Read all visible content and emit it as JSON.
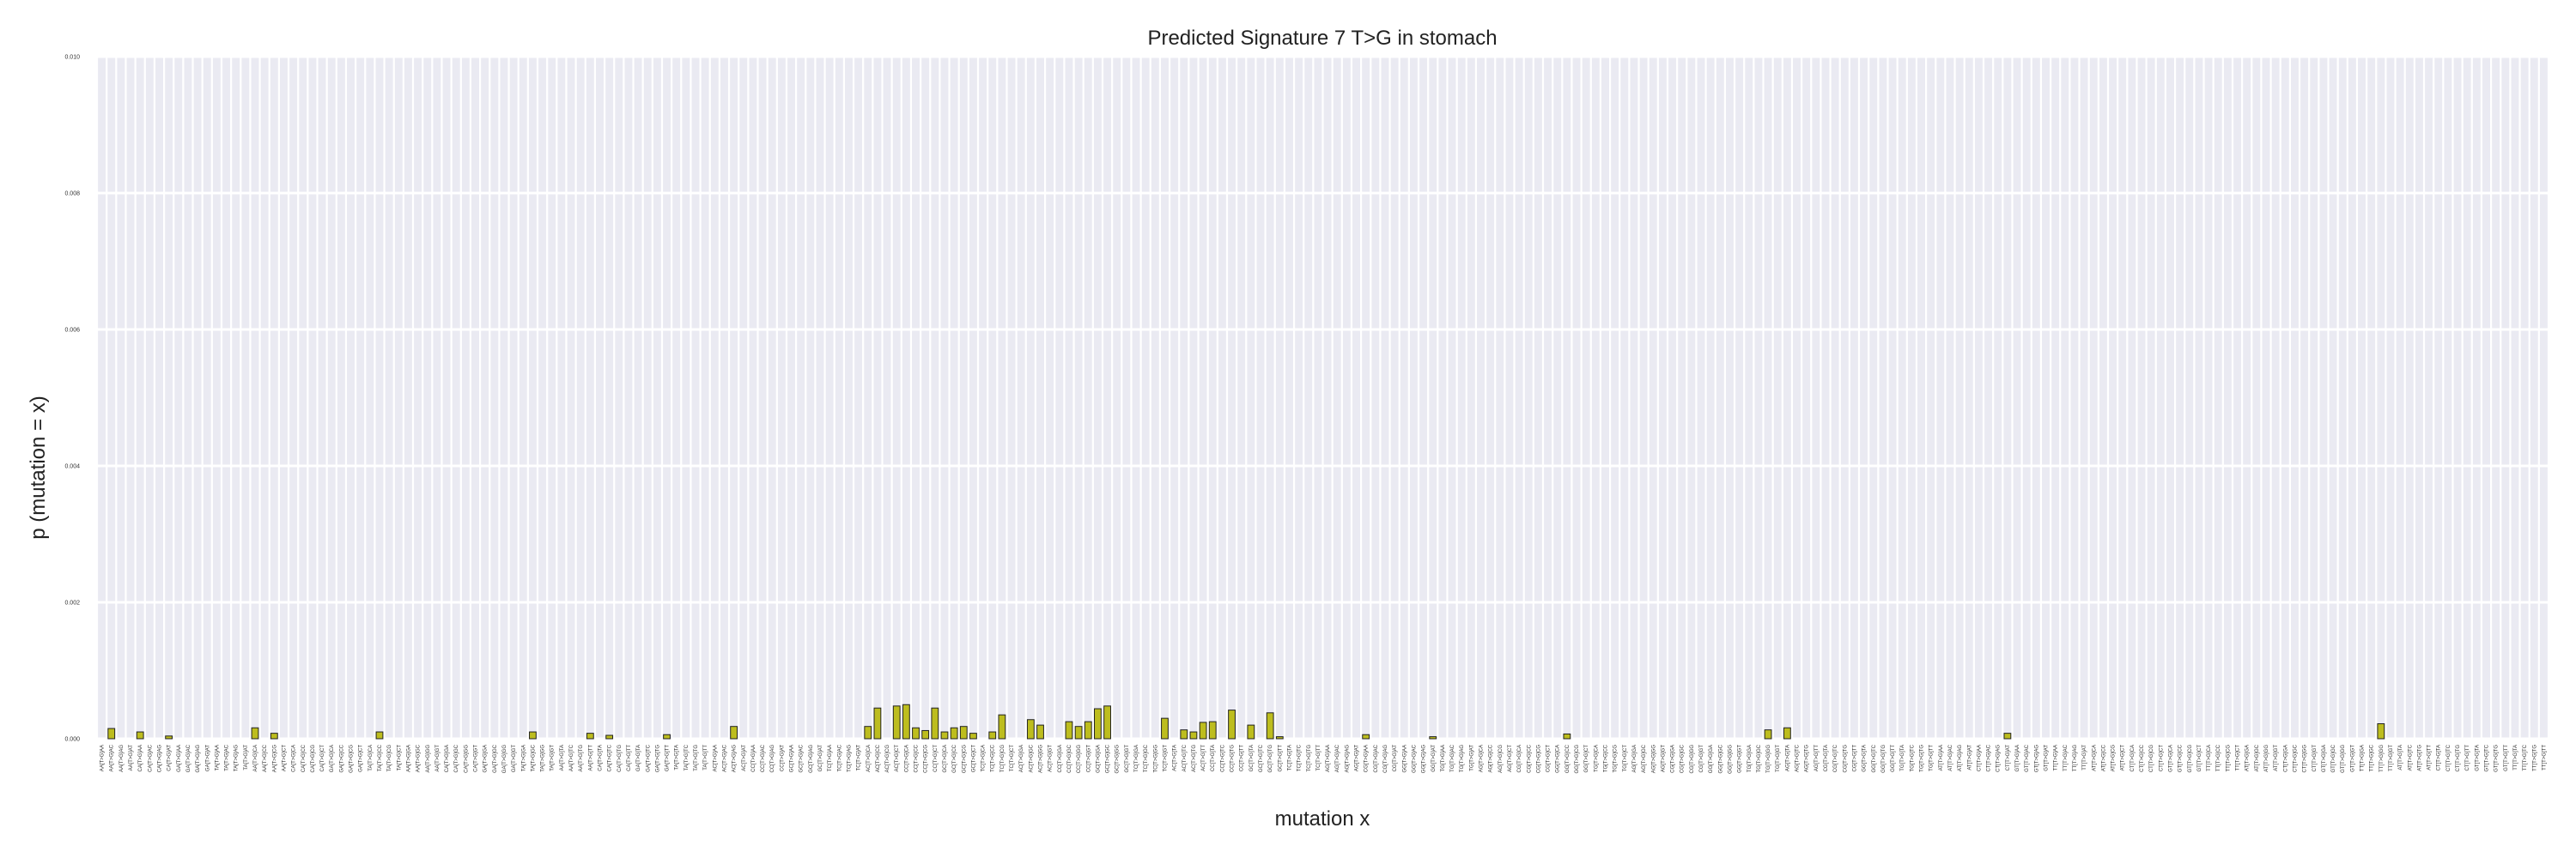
{
  "colors": {
    "plot_background": "#eaeaf2",
    "grid": "#ffffff",
    "bar_fill": "#bdbd1e",
    "bar_edge": "#222222",
    "text": "#222222"
  },
  "chart_data": {
    "type": "bar",
    "title": "Predicted Signature 7 T>G in stomach",
    "xlabel": "mutation x",
    "ylabel": "p (mutation = x)",
    "ylim": [
      0,
      0.01
    ],
    "yticks": [
      "0.000",
      "0.002",
      "0.004",
      "0.006",
      "0.008",
      "0.010"
    ],
    "grid": true,
    "legend": "none",
    "categories": [
      "AA[T>G]AA",
      "AA[T>G]AC",
      "AA[T>G]AG",
      "AA[T>G]AT",
      "CA[T>G]AA",
      "CA[T>G]AC",
      "CA[T>G]AG",
      "CA[T>G]AT",
      "GA[T>G]AA",
      "GA[T>G]AC",
      "GA[T>G]AG",
      "GA[T>G]AT",
      "TA[T>G]AA",
      "TA[T>G]AC",
      "TA[T>G]AG",
      "TA[T>G]AT",
      "AA[T>G]CA",
      "AA[T>G]CC",
      "AA[T>G]CG",
      "AA[T>G]CT",
      "CA[T>G]CA",
      "CA[T>G]CC",
      "CA[T>G]CG",
      "CA[T>G]CT",
      "GA[T>G]CA",
      "GA[T>G]CC",
      "GA[T>G]CG",
      "GA[T>G]CT",
      "TA[T>G]CA",
      "TA[T>G]CC",
      "TA[T>G]CG",
      "TA[T>G]CT",
      "AA[T>G]GA",
      "AA[T>G]GC",
      "AA[T>G]GG",
      "AA[T>G]GT",
      "CA[T>G]GA",
      "CA[T>G]GC",
      "CA[T>G]GG",
      "CA[T>G]GT",
      "GA[T>G]GA",
      "GA[T>G]GC",
      "GA[T>G]GG",
      "GA[T>G]GT",
      "TA[T>G]GA",
      "TA[T>G]GC",
      "TA[T>G]GG",
      "TA[T>G]GT",
      "AA[T>G]TA",
      "AA[T>G]TC",
      "AA[T>G]TG",
      "AA[T>G]TT",
      "CA[T>G]TA",
      "CA[T>G]TC",
      "CA[T>G]TG",
      "CA[T>G]TT",
      "GA[T>G]TA",
      "GA[T>G]TC",
      "GA[T>G]TG",
      "GA[T>G]TT",
      "TA[T>G]TA",
      "TA[T>G]TC",
      "TA[T>G]TG",
      "TA[T>G]TT",
      "AC[T>G]AA",
      "AC[T>G]AC",
      "AC[T>G]AG",
      "AC[T>G]AT",
      "CC[T>G]AA",
      "CC[T>G]AC",
      "CC[T>G]AG",
      "CC[T>G]AT",
      "GC[T>G]AA",
      "GC[T>G]AC",
      "GC[T>G]AG",
      "GC[T>G]AT",
      "TC[T>G]AA",
      "TC[T>G]AC",
      "TC[T>G]AG",
      "TC[T>G]AT",
      "AC[T>G]CA",
      "AC[T>G]CC",
      "AC[T>G]CG",
      "AC[T>G]CT",
      "CC[T>G]CA",
      "CC[T>G]CC",
      "CC[T>G]CG",
      "CC[T>G]CT",
      "GC[T>G]CA",
      "GC[T>G]CC",
      "GC[T>G]CG",
      "GC[T>G]CT",
      "TC[T>G]CA",
      "TC[T>G]CC",
      "TC[T>G]CG",
      "TC[T>G]CT",
      "AC[T>G]GA",
      "AC[T>G]GC",
      "AC[T>G]GG",
      "AC[T>G]GT",
      "CC[T>G]GA",
      "CC[T>G]GC",
      "CC[T>G]GG",
      "CC[T>G]GT",
      "GC[T>G]GA",
      "GC[T>G]GC",
      "GC[T>G]GG",
      "GC[T>G]GT",
      "TC[T>G]GA",
      "TC[T>G]GC",
      "TC[T>G]GG",
      "TC[T>G]GT",
      "AC[T>G]TA",
      "AC[T>G]TC",
      "AC[T>G]TG",
      "AC[T>G]TT",
      "CC[T>G]TA",
      "CC[T>G]TC",
      "CC[T>G]TG",
      "CC[T>G]TT",
      "GC[T>G]TA",
      "GC[T>G]TC",
      "GC[T>G]TG",
      "GC[T>G]TT",
      "TC[T>G]TA",
      "TC[T>G]TC",
      "TC[T>G]TG",
      "TC[T>G]TT",
      "AG[T>G]AA",
      "AG[T>G]AC",
      "AG[T>G]AG",
      "AG[T>G]AT",
      "CG[T>G]AA",
      "CG[T>G]AC",
      "CG[T>G]AG",
      "CG[T>G]AT",
      "GG[T>G]AA",
      "GG[T>G]AC",
      "GG[T>G]AG",
      "GG[T>G]AT",
      "TG[T>G]AA",
      "TG[T>G]AC",
      "TG[T>G]AG",
      "TG[T>G]AT",
      "AG[T>G]CA",
      "AG[T>G]CC",
      "AG[T>G]CG",
      "AG[T>G]CT",
      "CG[T>G]CA",
      "CG[T>G]CC",
      "CG[T>G]CG",
      "CG[T>G]CT",
      "GG[T>G]CA",
      "GG[T>G]CC",
      "GG[T>G]CG",
      "GG[T>G]CT",
      "TG[T>G]CA",
      "TG[T>G]CC",
      "TG[T>G]CG",
      "TG[T>G]CT",
      "AG[T>G]GA",
      "AG[T>G]GC",
      "AG[T>G]GG",
      "AG[T>G]GT",
      "CG[T>G]GA",
      "CG[T>G]GC",
      "CG[T>G]GG",
      "CG[T>G]GT",
      "GG[T>G]GA",
      "GG[T>G]GC",
      "GG[T>G]GG",
      "GG[T>G]GT",
      "TG[T>G]GA",
      "TG[T>G]GC",
      "TG[T>G]GG",
      "TG[T>G]GT",
      "AG[T>G]TA",
      "AG[T>G]TC",
      "AG[T>G]TG",
      "AG[T>G]TT",
      "CG[T>G]TA",
      "CG[T>G]TC",
      "CG[T>G]TG",
      "CG[T>G]TT",
      "GG[T>G]TA",
      "GG[T>G]TC",
      "GG[T>G]TG",
      "GG[T>G]TT",
      "TG[T>G]TA",
      "TG[T>G]TC",
      "TG[T>G]TG",
      "TG[T>G]TT",
      "AT[T>G]AA",
      "AT[T>G]AC",
      "AT[T>G]AG",
      "AT[T>G]AT",
      "CT[T>G]AA",
      "CT[T>G]AC",
      "CT[T>G]AG",
      "CT[T>G]AT",
      "GT[T>G]AA",
      "GT[T>G]AC",
      "GT[T>G]AG",
      "GT[T>G]AT",
      "TT[T>G]AA",
      "TT[T>G]AC",
      "TT[T>G]AG",
      "TT[T>G]AT",
      "AT[T>G]CA",
      "AT[T>G]CC",
      "AT[T>G]CG",
      "AT[T>G]CT",
      "CT[T>G]CA",
      "CT[T>G]CC",
      "CT[T>G]CG",
      "CT[T>G]CT",
      "GT[T>G]CA",
      "GT[T>G]CC",
      "GT[T>G]CG",
      "GT[T>G]CT",
      "TT[T>G]CA",
      "TT[T>G]CC",
      "TT[T>G]CG",
      "TT[T>G]CT",
      "AT[T>G]GA",
      "AT[T>G]GC",
      "AT[T>G]GG",
      "AT[T>G]GT",
      "CT[T>G]GA",
      "CT[T>G]GC",
      "CT[T>G]GG",
      "CT[T>G]GT",
      "GT[T>G]GA",
      "GT[T>G]GC",
      "GT[T>G]GG",
      "GT[T>G]GT",
      "TT[T>G]GA",
      "TT[T>G]GC",
      "TT[T>G]GG",
      "TT[T>G]GT",
      "AT[T>G]TA",
      "AT[T>G]TC",
      "AT[T>G]TG",
      "AT[T>G]TT",
      "CT[T>G]TA",
      "CT[T>G]TC",
      "CT[T>G]TG",
      "CT[T>G]TT",
      "GT[T>G]TA",
      "GT[T>G]TC",
      "GT[T>G]TG",
      "GT[T>G]TT",
      "TT[T>G]TA",
      "TT[T>G]TC",
      "TT[T>G]TG",
      "TT[T>G]TT"
    ],
    "values": [
      0,
      0.00015,
      0,
      0,
      0.0001,
      0,
      0,
      4e-05,
      0,
      0,
      0,
      0,
      0,
      0,
      0,
      0,
      0.00016,
      0,
      8e-05,
      0,
      0,
      0,
      0,
      0,
      0,
      0,
      0,
      0,
      0,
      0.0001,
      0,
      0,
      0,
      0,
      0,
      0,
      0,
      0,
      0,
      0,
      0,
      0,
      0,
      0,
      0,
      0.0001,
      0,
      0,
      0,
      0,
      0,
      8e-05,
      0,
      5e-05,
      0,
      0,
      0,
      0,
      0,
      6e-05,
      0,
      0,
      0,
      0,
      0,
      0,
      0.00018,
      0,
      0,
      0,
      0,
      0,
      0,
      0,
      0,
      0,
      0,
      0,
      0,
      0,
      0.00018,
      0.00045,
      0,
      0.00048,
      0.0005,
      0.00016,
      0.00012,
      0.00045,
      0.0001,
      0.00016,
      0.00018,
      8e-05,
      0,
      0.0001,
      0.00035,
      0,
      0,
      0.00028,
      0.0002,
      0,
      0,
      0.00025,
      0.00018,
      0.00025,
      0.00044,
      0.00048,
      0,
      0,
      0,
      0,
      0,
      0.0003,
      0,
      0.00013,
      0.0001,
      0.00024,
      0.00025,
      0,
      0.00042,
      0,
      0.0002,
      0,
      0.00038,
      3e-05,
      0,
      0,
      0,
      0,
      0,
      0,
      0,
      0,
      6e-05,
      0,
      0,
      0,
      0,
      0,
      0,
      3e-05,
      0,
      0,
      0,
      0,
      0,
      0,
      0,
      0,
      0,
      0,
      0,
      0,
      0,
      7e-05,
      0,
      0,
      0,
      0,
      0,
      0,
      0,
      0,
      0,
      0,
      0,
      0,
      0,
      0,
      0,
      0,
      0,
      0,
      0,
      0,
      0.00013,
      0,
      0.00016,
      0,
      0,
      0,
      0,
      0,
      0,
      0,
      0,
      0,
      0,
      0,
      0,
      0,
      0,
      0,
      0,
      0,
      0,
      0,
      0,
      0,
      0,
      8e-05,
      0,
      0,
      0,
      0,
      0,
      0,
      0,
      0,
      0,
      0,
      0,
      0,
      0,
      0,
      0,
      0,
      0,
      0,
      0,
      0,
      0,
      0,
      0,
      0,
      0,
      0,
      0,
      0,
      0,
      0,
      0,
      0,
      0,
      0,
      0,
      0,
      0,
      0,
      0.00022,
      0,
      0,
      0,
      0,
      0,
      0,
      0,
      0,
      0,
      0,
      0,
      0,
      0,
      0,
      0,
      0,
      0
    ]
  }
}
